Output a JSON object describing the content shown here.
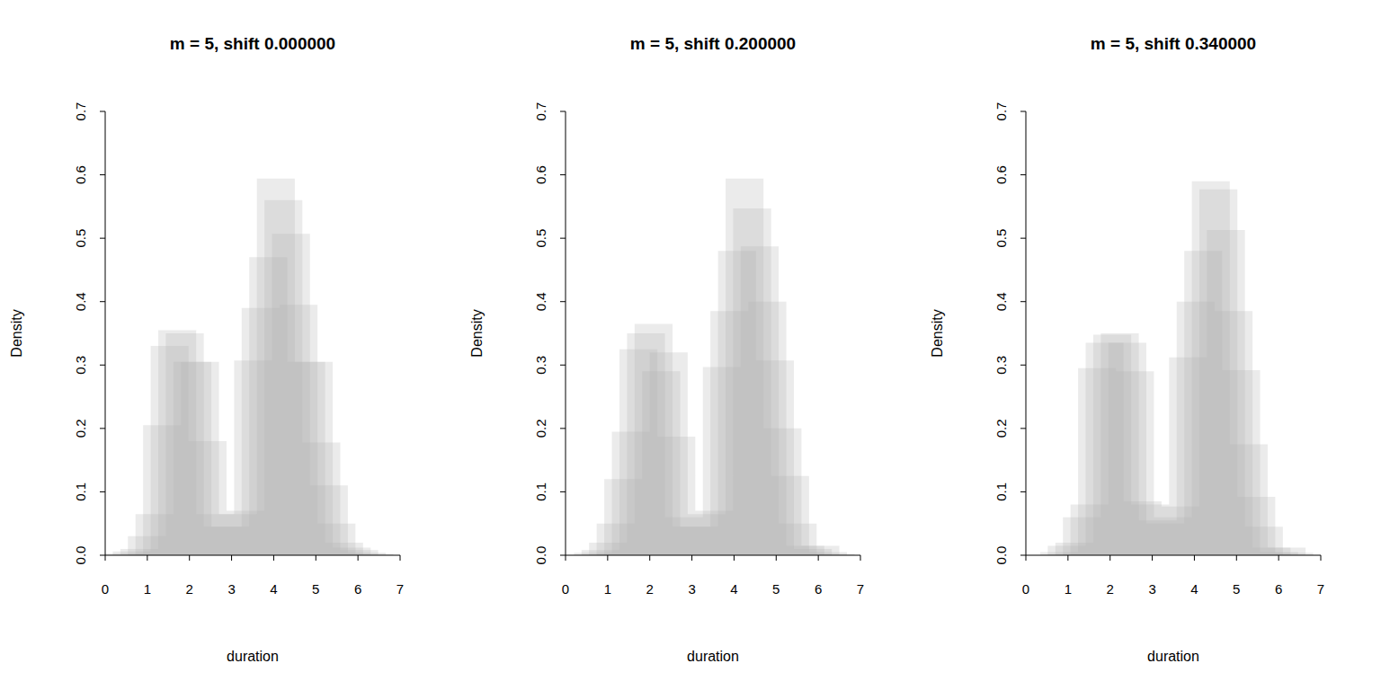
{
  "chart_data": [
    {
      "type": "histogram",
      "title": "m = 5, shift 0.000000",
      "xlabel": "duration",
      "ylabel": "Density",
      "color": "#b0b0b0",
      "xlim": [
        0,
        7
      ],
      "xticks": [
        0,
        1,
        2,
        3,
        4,
        5,
        6,
        7
      ],
      "ylim": [
        0,
        0.7
      ],
      "yticks": [
        {
          "value": 0,
          "label": "0.0"
        },
        {
          "value": 0.1,
          "label": "0.1"
        },
        {
          "value": 0.2,
          "label": "0.2"
        },
        {
          "value": 0.3,
          "label": "0.3"
        },
        {
          "value": 0.4,
          "label": "0.4"
        },
        {
          "value": 0.5,
          "label": "0.5"
        },
        {
          "value": 0.6,
          "label": "0.6"
        },
        {
          "value": 0.7,
          "label": "0.7"
        }
      ],
      "series": [
        {
          "bins": [
            0,
            0.9,
            1.8,
            2.7,
            3.6,
            4.5,
            5.4,
            6.3
          ],
          "values": [
            0.003,
            0.205,
            0.305,
            0.065,
            0.594,
            0.305,
            0.012
          ]
        },
        {
          "bins": [
            0.18,
            1.08,
            1.98,
            2.88,
            3.78,
            4.68,
            5.58,
            6.48
          ],
          "values": [
            0.006,
            0.33,
            0.18,
            0.07,
            0.56,
            0.178,
            0.008
          ]
        },
        {
          "bins": [
            0.36,
            1.26,
            2.16,
            3.06,
            3.96,
            4.86,
            5.76,
            6.66
          ],
          "values": [
            0.01,
            0.355,
            0.065,
            0.307,
            0.507,
            0.11,
            0.004
          ]
        },
        {
          "bins": [
            0.54,
            1.44,
            2.34,
            3.24,
            4.14,
            5.04,
            5.94,
            6.84
          ],
          "values": [
            0.03,
            0.35,
            0.045,
            0.39,
            0.395,
            0.05,
            0.002
          ]
        },
        {
          "bins": [
            0.72,
            1.62,
            2.52,
            3.42,
            4.32,
            5.22,
            6.12
          ],
          "values": [
            0.065,
            0.305,
            0.045,
            0.47,
            0.305,
            0.02
          ]
        }
      ]
    },
    {
      "type": "histogram",
      "title": "m = 5, shift 0.200000",
      "xlabel": "duration",
      "ylabel": "Density",
      "color": "#b0b0b0",
      "xlim": [
        0,
        7
      ],
      "xticks": [
        0,
        1,
        2,
        3,
        4,
        5,
        6,
        7
      ],
      "ylim": [
        0,
        0.7
      ],
      "yticks": [
        {
          "value": 0,
          "label": "0.0"
        },
        {
          "value": 0.1,
          "label": "0.1"
        },
        {
          "value": 0.2,
          "label": "0.2"
        },
        {
          "value": 0.3,
          "label": "0.3"
        },
        {
          "value": 0.4,
          "label": "0.4"
        },
        {
          "value": 0.5,
          "label": "0.5"
        },
        {
          "value": 0.6,
          "label": "0.6"
        },
        {
          "value": 0.7,
          "label": "0.7"
        }
      ],
      "series": [
        {
          "bins": [
            0.2,
            1.1,
            2.0,
            2.9,
            3.8,
            4.7,
            5.6,
            6.5
          ],
          "values": [
            0.004,
            0.195,
            0.32,
            0.065,
            0.594,
            0.2,
            0.015
          ]
        },
        {
          "bins": [
            0.38,
            1.28,
            2.18,
            3.08,
            3.98,
            4.88,
            5.78,
            6.68
          ],
          "values": [
            0.008,
            0.325,
            0.187,
            0.07,
            0.547,
            0.125,
            0.005
          ]
        },
        {
          "bins": [
            0.56,
            1.46,
            2.36,
            3.26,
            4.16,
            5.06,
            5.96,
            6.86
          ],
          "values": [
            0.02,
            0.35,
            0.06,
            0.297,
            0.487,
            0.05,
            0.002
          ]
        },
        {
          "bins": [
            0.74,
            1.64,
            2.54,
            3.44,
            4.34,
            5.24,
            6.14
          ],
          "values": [
            0.05,
            0.365,
            0.045,
            0.385,
            0.4,
            0.015
          ]
        },
        {
          "bins": [
            0.92,
            1.82,
            2.72,
            3.62,
            4.52,
            5.42,
            6.32
          ],
          "values": [
            0.12,
            0.29,
            0.045,
            0.48,
            0.307,
            0.01
          ]
        }
      ]
    },
    {
      "type": "histogram",
      "title": "m = 5, shift 0.340000",
      "xlabel": "duration",
      "ylabel": "Density",
      "color": "#b0b0b0",
      "xlim": [
        0,
        7
      ],
      "xticks": [
        0,
        1,
        2,
        3,
        4,
        5,
        6,
        7
      ],
      "ylim": [
        0,
        0.7
      ],
      "yticks": [
        {
          "value": 0,
          "label": "0.0"
        },
        {
          "value": 0.1,
          "label": "0.1"
        },
        {
          "value": 0.2,
          "label": "0.2"
        },
        {
          "value": 0.3,
          "label": "0.3"
        },
        {
          "value": 0.4,
          "label": "0.4"
        },
        {
          "value": 0.5,
          "label": "0.5"
        },
        {
          "value": 0.6,
          "label": "0.6"
        },
        {
          "value": 0.7,
          "label": "0.7"
        }
      ],
      "series": [
        {
          "bins": [
            0.34,
            1.24,
            2.14,
            3.04,
            3.94,
            4.84,
            5.74,
            6.64
          ],
          "values": [
            0.005,
            0.295,
            0.29,
            0.06,
            0.59,
            0.175,
            0.012
          ]
        },
        {
          "bins": [
            0.52,
            1.42,
            2.32,
            3.22,
            4.12,
            5.02,
            5.92,
            6.82
          ],
          "values": [
            0.015,
            0.335,
            0.085,
            0.077,
            0.577,
            0.092,
            0.004
          ]
        },
        {
          "bins": [
            0.7,
            1.6,
            2.5,
            3.4,
            4.3,
            5.2,
            6.1
          ],
          "values": [
            0.02,
            0.348,
            0.08,
            0.312,
            0.513,
            0.045
          ]
        },
        {
          "bins": [
            0.88,
            1.78,
            2.68,
            3.58,
            4.48,
            5.38,
            6.28
          ],
          "values": [
            0.06,
            0.35,
            0.055,
            0.4,
            0.385,
            0.012
          ]
        },
        {
          "bins": [
            1.06,
            1.96,
            2.86,
            3.76,
            4.66,
            5.56,
            6.46
          ],
          "values": [
            0.08,
            0.335,
            0.05,
            0.48,
            0.292,
            0.005
          ]
        }
      ]
    }
  ]
}
